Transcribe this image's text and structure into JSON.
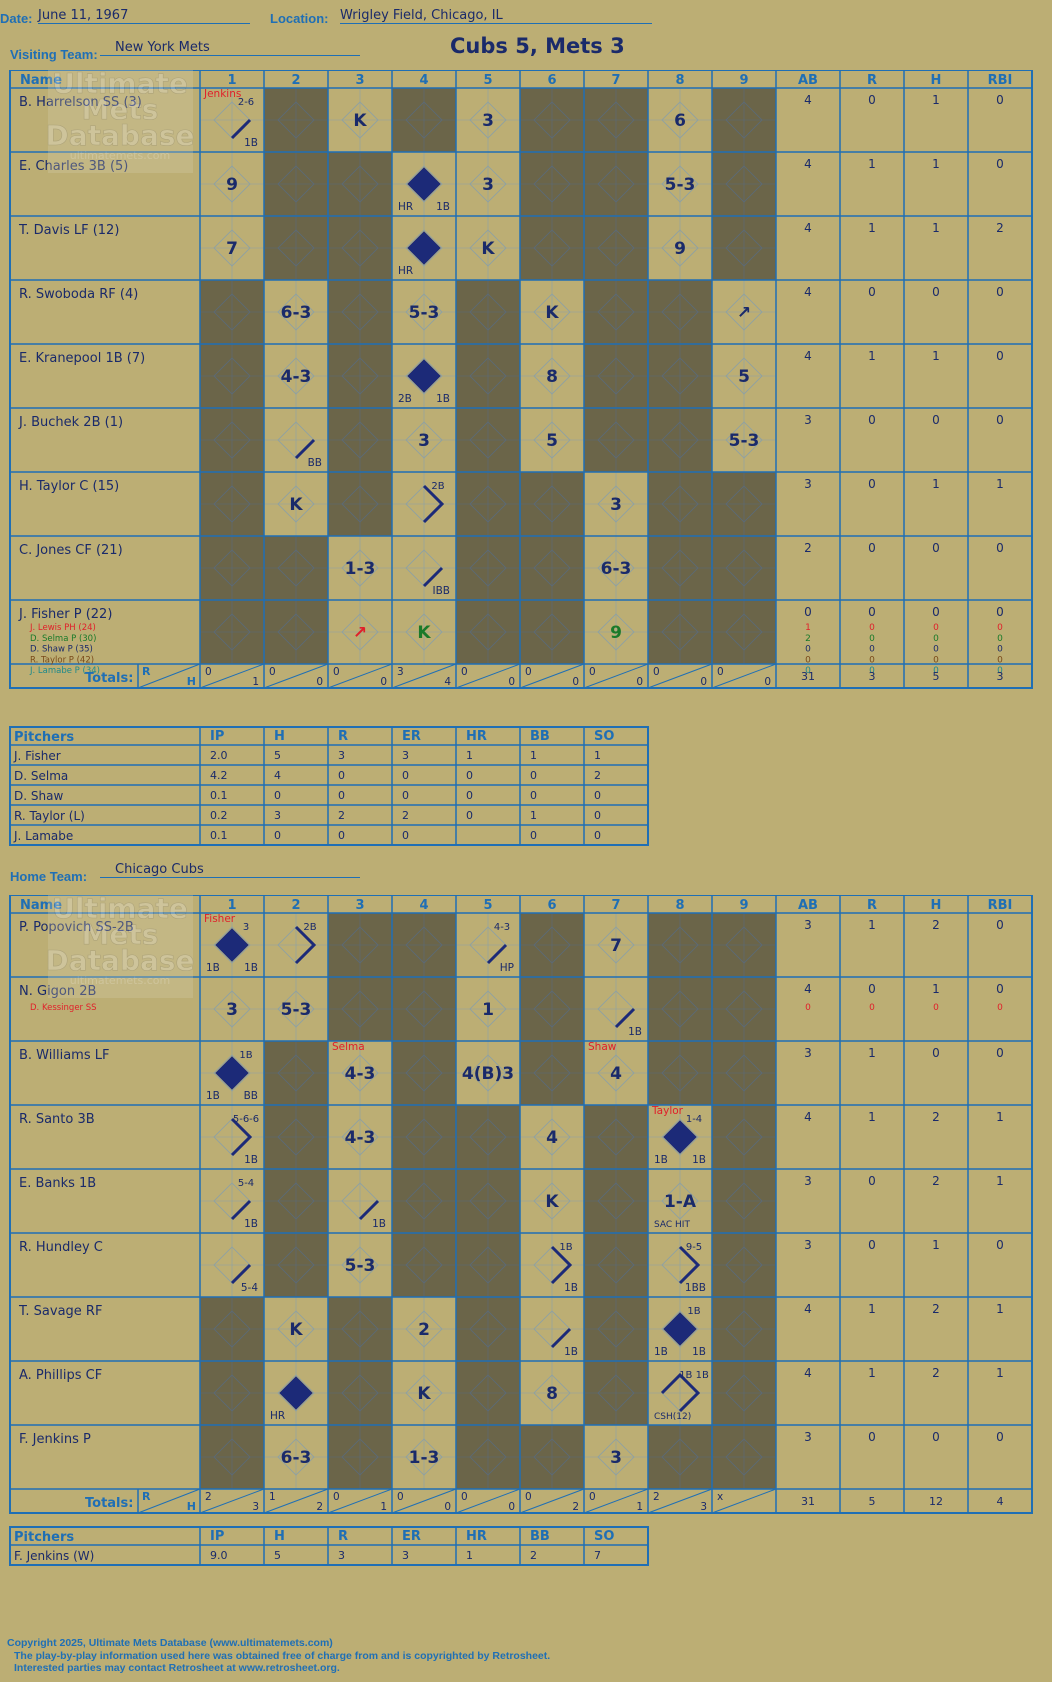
{
  "header": {
    "date_label": "Date:",
    "date": "June 11, 1967",
    "location_label": "Location:",
    "location": "Wrigley Field, Chicago, IL",
    "title": "Cubs 5, Mets 3",
    "visiting_label": "Visiting Team:",
    "visiting_team": "New York Mets",
    "home_label": "Home Team:",
    "home_team": "Chicago Cubs"
  },
  "watermark": {
    "line1": "Ultimate",
    "line2": "Mets",
    "line3": "Database",
    "url": "ultimatemets.com"
  },
  "columns": {
    "name": "Name",
    "innings": [
      "1",
      "2",
      "3",
      "4",
      "5",
      "6",
      "7",
      "8",
      "9"
    ],
    "stats": [
      "AB",
      "R",
      "H",
      "RBI"
    ],
    "totals_label": "Totals:",
    "rh": [
      "R",
      "H"
    ]
  },
  "pitcher_columns": {
    "name": "Pitchers",
    "stats": [
      "IP",
      "H",
      "R",
      "ER",
      "HR",
      "BB",
      "SO"
    ]
  },
  "colors": {
    "background": "#bcae74",
    "shade": "#6b6549",
    "grid": "#1f6fb5",
    "ink": "#1a2a6a",
    "red": "#e0202a",
    "green": "#1a7a2a"
  },
  "visiting": {
    "batters": [
      {
        "name": "B. Harrelson SS (3)",
        "stats": [
          "4",
          "0",
          "1",
          "0"
        ],
        "subs": []
      },
      {
        "name": "E. Charles 3B (5)",
        "stats": [
          "4",
          "1",
          "1",
          "0"
        ],
        "subs": []
      },
      {
        "name": "T. Davis LF (12)",
        "stats": [
          "4",
          "1",
          "1",
          "2"
        ],
        "subs": []
      },
      {
        "name": "R. Swoboda RF (4)",
        "stats": [
          "4",
          "0",
          "0",
          "0"
        ],
        "subs": []
      },
      {
        "name": "E. Kranepool 1B (7)",
        "stats": [
          "4",
          "1",
          "1",
          "0"
        ],
        "subs": []
      },
      {
        "name": "J. Buchek 2B (1)",
        "stats": [
          "3",
          "0",
          "0",
          "0"
        ],
        "subs": []
      },
      {
        "name": "H. Taylor C (15)",
        "stats": [
          "3",
          "0",
          "1",
          "1"
        ],
        "subs": []
      },
      {
        "name": "C. Jones CF (21)",
        "stats": [
          "2",
          "0",
          "0",
          "0"
        ],
        "subs": []
      },
      {
        "name": "J. Fisher P (22)",
        "stats": [
          "0",
          "0",
          "0",
          "0"
        ],
        "subs": [
          {
            "name": "J. Lewis PH (24)",
            "color": "#e0202a",
            "stats": [
              "1",
              "0",
              "0",
              "0"
            ]
          },
          {
            "name": "D. Selma P (30)",
            "color": "#1a7a2a",
            "stats": [
              "2",
              "0",
              "0",
              "0"
            ]
          },
          {
            "name": "D. Shaw P (35)",
            "color": "#1a2a6a",
            "stats": [
              "0",
              "0",
              "0",
              "0"
            ]
          },
          {
            "name": "R. Taylor P (42)",
            "color": "#7a4a1a",
            "stats": [
              "0",
              "0",
              "0",
              "0"
            ]
          },
          {
            "name": "J. Lamabe P (34)",
            "color": "#1f8a8a",
            "stats": [
              "0",
              "0",
              "0",
              "0"
            ]
          }
        ]
      }
    ],
    "plays": [
      {
        "r": 0,
        "i": 0,
        "t": "",
        "path": "1",
        "note": "2-6",
        "bl": "",
        "br": "1B",
        "tl": "Jenkins"
      },
      {
        "r": 0,
        "i": 2,
        "t": "K"
      },
      {
        "r": 0,
        "i": 4,
        "t": "3"
      },
      {
        "r": 0,
        "i": 7,
        "t": "6"
      },
      {
        "r": 1,
        "i": 0,
        "t": "9"
      },
      {
        "r": 1,
        "i": 3,
        "t": "",
        "fill": true,
        "bl": "HR",
        "br": "1B"
      },
      {
        "r": 1,
        "i": 4,
        "t": "3"
      },
      {
        "r": 1,
        "i": 7,
        "t": "5-3"
      },
      {
        "r": 2,
        "i": 0,
        "t": "7"
      },
      {
        "r": 2,
        "i": 3,
        "t": "",
        "fill": true,
        "bl": "HR"
      },
      {
        "r": 2,
        "i": 4,
        "t": "K"
      },
      {
        "r": 2,
        "i": 7,
        "t": "9"
      },
      {
        "r": 3,
        "i": 1,
        "t": "6-3"
      },
      {
        "r": 3,
        "i": 3,
        "t": "5-3"
      },
      {
        "r": 3,
        "i": 5,
        "t": "K"
      },
      {
        "r": 3,
        "i": 8,
        "t": "↗"
      },
      {
        "r": 4,
        "i": 1,
        "t": "4-3"
      },
      {
        "r": 4,
        "i": 3,
        "t": "",
        "fill": true,
        "bl": "2B",
        "br": "1B"
      },
      {
        "r": 4,
        "i": 5,
        "t": "8"
      },
      {
        "r": 4,
        "i": 8,
        "t": "5"
      },
      {
        "r": 5,
        "i": 1,
        "t": "",
        "path": "1",
        "br": "BB"
      },
      {
        "r": 5,
        "i": 3,
        "t": "3"
      },
      {
        "r": 5,
        "i": 5,
        "t": "5"
      },
      {
        "r": 5,
        "i": 8,
        "t": "5-3"
      },
      {
        "r": 6,
        "i": 1,
        "t": "K"
      },
      {
        "r": 6,
        "i": 3,
        "t": "",
        "path": "12",
        "note": "2B"
      },
      {
        "r": 6,
        "i": 6,
        "t": "3"
      },
      {
        "r": 7,
        "i": 2,
        "t": "1-3"
      },
      {
        "r": 7,
        "i": 3,
        "t": "",
        "path": "1",
        "br": "IBB"
      },
      {
        "r": 7,
        "i": 6,
        "t": "6-3"
      },
      {
        "r": 8,
        "i": 2,
        "t": "↗",
        "color": "#e0202a"
      },
      {
        "r": 8,
        "i": 3,
        "t": "K",
        "color": "#1a7a2a"
      },
      {
        "r": 8,
        "i": 6,
        "t": "9",
        "color": "#1a7a2a"
      }
    ],
    "shaded": [
      [
        0,
        1
      ],
      [
        0,
        3
      ],
      [
        0,
        5
      ],
      [
        0,
        6
      ],
      [
        0,
        8
      ],
      [
        1,
        1
      ],
      [
        1,
        2
      ],
      [
        1,
        5
      ],
      [
        1,
        6
      ],
      [
        1,
        8
      ],
      [
        2,
        1
      ],
      [
        2,
        2
      ],
      [
        2,
        5
      ],
      [
        2,
        6
      ],
      [
        2,
        8
      ],
      [
        3,
        0
      ],
      [
        3,
        2
      ],
      [
        3,
        4
      ],
      [
        3,
        6
      ],
      [
        3,
        7
      ],
      [
        4,
        0
      ],
      [
        4,
        2
      ],
      [
        4,
        4
      ],
      [
        4,
        6
      ],
      [
        4,
        7
      ],
      [
        5,
        0
      ],
      [
        5,
        2
      ],
      [
        5,
        4
      ],
      [
        5,
        6
      ],
      [
        5,
        7
      ],
      [
        6,
        0
      ],
      [
        6,
        2
      ],
      [
        6,
        4
      ],
      [
        6,
        5
      ],
      [
        6,
        7
      ],
      [
        6,
        8
      ],
      [
        7,
        0
      ],
      [
        7,
        1
      ],
      [
        7,
        4
      ],
      [
        7,
        5
      ],
      [
        7,
        7
      ],
      [
        7,
        8
      ],
      [
        8,
        0
      ],
      [
        8,
        1
      ],
      [
        8,
        4
      ],
      [
        8,
        5
      ],
      [
        8,
        7
      ],
      [
        8,
        8
      ]
    ],
    "totals": [
      [
        "0",
        "1"
      ],
      [
        "0",
        "0"
      ],
      [
        "0",
        "0"
      ],
      [
        "3",
        "4"
      ],
      [
        "0",
        "0"
      ],
      [
        "0",
        "0"
      ],
      [
        "0",
        "0"
      ],
      [
        "0",
        "0"
      ],
      [
        "0",
        "0"
      ]
    ],
    "stat_totals": [
      "31",
      "3",
      "5",
      "3"
    ],
    "pitchers": [
      {
        "name": "J. Fisher",
        "stats": [
          "2.0",
          "5",
          "3",
          "3",
          "1",
          "1",
          "1"
        ]
      },
      {
        "name": "D. Selma",
        "stats": [
          "4.2",
          "4",
          "0",
          "0",
          "0",
          "0",
          "2"
        ]
      },
      {
        "name": "D. Shaw",
        "stats": [
          "0.1",
          "0",
          "0",
          "0",
          "0",
          "0",
          "0"
        ]
      },
      {
        "name": "R. Taylor (L)",
        "stats": [
          "0.2",
          "3",
          "2",
          "2",
          "0",
          "1",
          "0"
        ]
      },
      {
        "name": "J. Lamabe",
        "stats": [
          "0.1",
          "0",
          "0",
          "0",
          "",
          "0",
          "0"
        ]
      }
    ]
  },
  "home": {
    "batters": [
      {
        "name": "P. Popovich SS-2B",
        "stats": [
          "3",
          "1",
          "2",
          "0"
        ],
        "subs": []
      },
      {
        "name": "N. Gigon 2B",
        "stats": [
          "4",
          "0",
          "1",
          "0"
        ],
        "subs": [
          {
            "name": "D. Kessinger SS",
            "color": "#e0202a",
            "stats": [
              "0",
              "0",
              "0",
              "0"
            ]
          }
        ]
      },
      {
        "name": "B. Williams LF",
        "stats": [
          "3",
          "1",
          "0",
          "0"
        ],
        "subs": []
      },
      {
        "name": "R. Santo 3B",
        "stats": [
          "4",
          "1",
          "2",
          "1"
        ],
        "subs": []
      },
      {
        "name": "E. Banks 1B",
        "stats": [
          "3",
          "0",
          "2",
          "1"
        ],
        "subs": []
      },
      {
        "name": "R. Hundley C",
        "stats": [
          "3",
          "0",
          "1",
          "0"
        ],
        "subs": []
      },
      {
        "name": "T. Savage RF",
        "stats": [
          "4",
          "1",
          "2",
          "1"
        ],
        "subs": []
      },
      {
        "name": "A. Phillips CF",
        "stats": [
          "4",
          "1",
          "2",
          "1"
        ],
        "subs": []
      },
      {
        "name": "F. Jenkins P",
        "stats": [
          "3",
          "0",
          "0",
          "0"
        ],
        "subs": []
      }
    ],
    "plays": [
      {
        "r": 0,
        "i": 0,
        "t": "",
        "fill": true,
        "note": "3",
        "bl": "1B",
        "br": "1B",
        "tl": "Fisher"
      },
      {
        "r": 0,
        "i": 1,
        "t": "",
        "path": "12",
        "note": "2B"
      },
      {
        "r": 0,
        "i": 4,
        "t": "",
        "path": "1",
        "note": "4-3",
        "br": "HP"
      },
      {
        "r": 0,
        "i": 6,
        "t": "7"
      },
      {
        "r": 1,
        "i": 0,
        "t": "3"
      },
      {
        "r": 1,
        "i": 1,
        "t": "5-3"
      },
      {
        "r": 1,
        "i": 4,
        "t": "1"
      },
      {
        "r": 1,
        "i": 6,
        "t": "",
        "path": "1",
        "br": "1B"
      },
      {
        "r": 2,
        "i": 0,
        "t": "",
        "fill": true,
        "note": "1B",
        "bl": "1B",
        "br": "BB"
      },
      {
        "r": 2,
        "i": 2,
        "t": "4-3",
        "tl": "Selma"
      },
      {
        "r": 2,
        "i": 4,
        "t": "4(B)3"
      },
      {
        "r": 2,
        "i": 6,
        "t": "4",
        "tl": "Shaw"
      },
      {
        "r": 3,
        "i": 0,
        "t": "",
        "path": "12",
        "note": "5-6-6",
        "br": "1B"
      },
      {
        "r": 3,
        "i": 2,
        "t": "4-3"
      },
      {
        "r": 3,
        "i": 5,
        "t": "4"
      },
      {
        "r": 3,
        "i": 7,
        "t": "",
        "fill": true,
        "note": "1-4",
        "bl": "1B",
        "br": "1B",
        "tl": "Taylor"
      },
      {
        "r": 4,
        "i": 0,
        "t": "",
        "path": "1",
        "note": "5-4",
        "br": "1B"
      },
      {
        "r": 4,
        "i": 2,
        "t": "",
        "path": "1",
        "br": "1B"
      },
      {
        "r": 4,
        "i": 5,
        "t": "K"
      },
      {
        "r": 4,
        "i": 7,
        "t": "1-A",
        "bl": "SAC HIT"
      },
      {
        "r": 5,
        "i": 0,
        "t": "",
        "path": "1",
        "br": "5-4"
      },
      {
        "r": 5,
        "i": 2,
        "t": "5-3"
      },
      {
        "r": 5,
        "i": 5,
        "t": "",
        "path": "12",
        "note": "1B",
        "br": "1B"
      },
      {
        "r": 5,
        "i": 7,
        "t": "",
        "path": "12",
        "note": "9-5",
        "br": "1BB"
      },
      {
        "r": 6,
        "i": 1,
        "t": "K"
      },
      {
        "r": 6,
        "i": 3,
        "t": "2"
      },
      {
        "r": 6,
        "i": 5,
        "t": "",
        "path": "1",
        "br": "1B"
      },
      {
        "r": 6,
        "i": 7,
        "t": "",
        "fill": true,
        "note": "1B",
        "bl": "1B",
        "br": "1B"
      },
      {
        "r": 7,
        "i": 1,
        "t": "",
        "fill": true,
        "bl": "HR"
      },
      {
        "r": 7,
        "i": 3,
        "t": "K"
      },
      {
        "r": 7,
        "i": 5,
        "t": "8"
      },
      {
        "r": 7,
        "i": 7,
        "t": "",
        "path": "123",
        "note": "1B 1B",
        "bl": "CSH(12)"
      },
      {
        "r": 8,
        "i": 1,
        "t": "6-3"
      },
      {
        "r": 8,
        "i": 3,
        "t": "1-3"
      },
      {
        "r": 8,
        "i": 6,
        "t": "3"
      }
    ],
    "shaded": [
      [
        0,
        2
      ],
      [
        0,
        3
      ],
      [
        0,
        5
      ],
      [
        0,
        7
      ],
      [
        0,
        8
      ],
      [
        1,
        2
      ],
      [
        1,
        3
      ],
      [
        1,
        5
      ],
      [
        1,
        7
      ],
      [
        1,
        8
      ],
      [
        2,
        1
      ],
      [
        2,
        3
      ],
      [
        2,
        5
      ],
      [
        2,
        7
      ],
      [
        2,
        8
      ],
      [
        3,
        1
      ],
      [
        3,
        3
      ],
      [
        3,
        4
      ],
      [
        3,
        6
      ],
      [
        3,
        8
      ],
      [
        4,
        1
      ],
      [
        4,
        3
      ],
      [
        4,
        4
      ],
      [
        4,
        6
      ],
      [
        4,
        8
      ],
      [
        5,
        1
      ],
      [
        5,
        3
      ],
      [
        5,
        4
      ],
      [
        5,
        6
      ],
      [
        5,
        8
      ],
      [
        6,
        0
      ],
      [
        6,
        2
      ],
      [
        6,
        4
      ],
      [
        6,
        6
      ],
      [
        6,
        8
      ],
      [
        7,
        0
      ],
      [
        7,
        2
      ],
      [
        7,
        4
      ],
      [
        7,
        6
      ],
      [
        7,
        8
      ],
      [
        8,
        0
      ],
      [
        8,
        2
      ],
      [
        8,
        4
      ],
      [
        8,
        5
      ],
      [
        8,
        7
      ],
      [
        8,
        8
      ]
    ],
    "totals": [
      [
        "2",
        "3"
      ],
      [
        "1",
        "2"
      ],
      [
        "0",
        "1"
      ],
      [
        "0",
        "0"
      ],
      [
        "0",
        "0"
      ],
      [
        "0",
        "2"
      ],
      [
        "0",
        "1"
      ],
      [
        "2",
        "3"
      ],
      [
        "x",
        ""
      ]
    ],
    "stat_totals": [
      "31",
      "5",
      "12",
      "4"
    ],
    "pitchers": [
      {
        "name": "F. Jenkins (W)",
        "stats": [
          "9.0",
          "5",
          "3",
          "3",
          "1",
          "2",
          "7"
        ]
      }
    ]
  },
  "footer": {
    "line1": "Copyright 2025, Ultimate Mets Database (www.ultimatemets.com)",
    "line2": "The play-by-play information used here was obtained free of charge from and is copyrighted by Retrosheet.",
    "line3": "Interested parties may contact Retrosheet at www.retrosheet.org."
  }
}
